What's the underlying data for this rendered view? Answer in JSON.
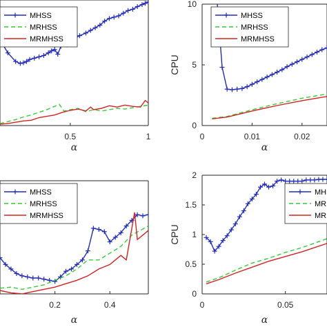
{
  "colors": {
    "mhss": "#1f2bbf",
    "mrhss": "#33cc33",
    "mrmhss": "#d42020",
    "axis": "#262626"
  },
  "chart_data": [
    {
      "type": "line",
      "xlabel": "α",
      "ylabel": "",
      "xlim": [
        0.05,
        1.0
      ],
      "ylim": [
        0.5,
        2.4
      ],
      "xticks": [
        0.5,
        1
      ],
      "xtick_labels": [
        "0.5",
        "1"
      ],
      "yticks": [],
      "ytick_labels": [],
      "legend": {
        "placement": "top-left",
        "entries": [
          "MHSS",
          "MRHSS",
          "MRMHSS"
        ]
      },
      "series": [
        {
          "name": "MHSS",
          "marker": "plus",
          "x": [
            0.05,
            0.1,
            0.15,
            0.18,
            0.2,
            0.22,
            0.24,
            0.27,
            0.3,
            0.33,
            0.36,
            0.38,
            0.4,
            0.42,
            0.44,
            0.46,
            0.48,
            0.5,
            0.53,
            0.56,
            0.6,
            0.63,
            0.66,
            0.69,
            0.72,
            0.75,
            0.78,
            0.81,
            0.84,
            0.87,
            0.9,
            0.93,
            0.96,
            0.98,
            1.0
          ],
          "y": [
            1.8,
            1.6,
            1.47,
            1.44,
            1.45,
            1.47,
            1.5,
            1.52,
            1.54,
            1.56,
            1.6,
            1.63,
            1.65,
            1.58,
            1.7,
            1.75,
            1.72,
            1.78,
            1.82,
            1.86,
            1.9,
            1.94,
            1.98,
            2.02,
            2.08,
            2.12,
            2.14,
            2.16,
            2.2,
            2.24,
            2.26,
            2.3,
            2.33,
            2.35,
            2.37
          ]
        },
        {
          "name": "MRHSS",
          "x": [
            0.05,
            0.1,
            0.15,
            0.2,
            0.25,
            0.3,
            0.35,
            0.4,
            0.43,
            0.46,
            0.5,
            0.55,
            0.6,
            0.65,
            0.7,
            0.75,
            0.8,
            0.85,
            0.9,
            0.95,
            1.0
          ],
          "y": [
            0.53,
            0.56,
            0.59,
            0.63,
            0.66,
            0.7,
            0.74,
            0.79,
            0.82,
            0.72,
            0.74,
            0.76,
            0.71,
            0.74,
            0.72,
            0.74,
            0.76,
            0.75,
            0.77,
            0.79,
            0.81
          ]
        },
        {
          "name": "MRMHSS",
          "x": [
            0.05,
            0.1,
            0.15,
            0.2,
            0.25,
            0.3,
            0.35,
            0.4,
            0.45,
            0.5,
            0.55,
            0.6,
            0.63,
            0.65,
            0.7,
            0.75,
            0.8,
            0.85,
            0.9,
            0.95,
            0.98,
            1.0
          ],
          "y": [
            0.52,
            0.53,
            0.55,
            0.57,
            0.58,
            0.62,
            0.64,
            0.66,
            0.7,
            0.73,
            0.75,
            0.72,
            0.78,
            0.74,
            0.76,
            0.8,
            0.78,
            0.81,
            0.79,
            0.78,
            0.88,
            0.84
          ]
        }
      ]
    },
    {
      "type": "line",
      "xlabel": "α",
      "ylabel": "CPU",
      "xlim": [
        0,
        0.025
      ],
      "ylim": [
        0,
        10
      ],
      "xticks": [
        0,
        0.01,
        0.02
      ],
      "xtick_labels": [
        "0",
        "0.01",
        "0.02"
      ],
      "yticks": [
        0,
        5,
        10
      ],
      "ytick_labels": [
        "0",
        "5",
        "10"
      ],
      "legend": {
        "placement": "top-left",
        "entries": [
          "MHSS",
          "MRHSS",
          "MRMHSS"
        ]
      },
      "series": [
        {
          "name": "MHSS",
          "marker": "plus",
          "x": [
            0.003,
            0.004,
            0.005,
            0.006,
            0.007,
            0.008,
            0.009,
            0.01,
            0.011,
            0.012,
            0.013,
            0.014,
            0.015,
            0.016,
            0.017,
            0.018,
            0.019,
            0.02,
            0.021,
            0.022,
            0.023,
            0.024,
            0.025
          ],
          "y": [
            10.2,
            4.8,
            3.0,
            2.95,
            3.0,
            3.05,
            3.2,
            3.4,
            3.6,
            3.8,
            4.0,
            4.2,
            4.4,
            4.6,
            4.85,
            5.05,
            5.25,
            5.45,
            5.65,
            5.85,
            6.05,
            6.25,
            6.4
          ]
        },
        {
          "name": "MRHSS",
          "x": [
            0.002,
            0.005,
            0.01,
            0.015,
            0.02,
            0.025
          ],
          "y": [
            0.6,
            0.75,
            1.3,
            1.8,
            2.25,
            2.6
          ]
        },
        {
          "name": "MRMHSS",
          "x": [
            0.002,
            0.005,
            0.01,
            0.015,
            0.02,
            0.025
          ],
          "y": [
            0.55,
            0.7,
            1.2,
            1.65,
            2.05,
            2.4
          ]
        }
      ]
    },
    {
      "type": "line",
      "xlabel": "α",
      "ylabel": "",
      "xlim": [
        0.0,
        0.54
      ],
      "ylim": [
        0,
        1.0
      ],
      "xticks": [
        0.2,
        0.4
      ],
      "xtick_labels": [
        "0.2",
        "0.4"
      ],
      "yticks": [],
      "ytick_labels": [],
      "legend": {
        "placement": "top-left",
        "entries": [
          "MHSS",
          "MRHSS",
          "MRMHSS"
        ]
      },
      "series": [
        {
          "name": "MHSS",
          "marker": "plus",
          "x": [
            0.0,
            0.02,
            0.04,
            0.06,
            0.08,
            0.1,
            0.12,
            0.14,
            0.16,
            0.18,
            0.2,
            0.22,
            0.24,
            0.26,
            0.28,
            0.3,
            0.32,
            0.34,
            0.36,
            0.38,
            0.4,
            0.42,
            0.44,
            0.46,
            0.48,
            0.5,
            0.52,
            0.54
          ],
          "y": [
            0.32,
            0.26,
            0.22,
            0.18,
            0.16,
            0.15,
            0.14,
            0.14,
            0.13,
            0.12,
            0.11,
            0.15,
            0.2,
            0.22,
            0.26,
            0.3,
            0.38,
            0.58,
            0.57,
            0.55,
            0.46,
            0.5,
            0.54,
            0.6,
            0.65,
            0.7,
            0.69,
            0.7
          ]
        },
        {
          "name": "MRHSS",
          "x": [
            0.0,
            0.04,
            0.08,
            0.12,
            0.16,
            0.2,
            0.24,
            0.28,
            0.32,
            0.36,
            0.4,
            0.44,
            0.48,
            0.54
          ],
          "y": [
            0.05,
            0.06,
            0.04,
            0.06,
            0.08,
            0.12,
            0.16,
            0.22,
            0.3,
            0.3,
            0.36,
            0.42,
            0.52,
            0.6
          ]
        },
        {
          "name": "MRMHSS",
          "x": [
            0.0,
            0.04,
            0.08,
            0.12,
            0.16,
            0.2,
            0.24,
            0.28,
            0.32,
            0.36,
            0.4,
            0.44,
            0.46,
            0.49,
            0.5,
            0.54
          ],
          "y": [
            0.03,
            0.01,
            0.0,
            0.02,
            0.04,
            0.06,
            0.09,
            0.12,
            0.16,
            0.22,
            0.26,
            0.34,
            0.3,
            0.72,
            0.48,
            0.56
          ]
        }
      ]
    },
    {
      "type": "line",
      "xlabel": "α",
      "ylabel": "CPU",
      "xlim": [
        0,
        0.075
      ],
      "ylim": [
        0,
        2
      ],
      "xticks": [
        0,
        0.05
      ],
      "xtick_labels": [
        "0",
        "0.05"
      ],
      "yticks": [
        0,
        0.5,
        1,
        1.5,
        2
      ],
      "ytick_labels": [
        "0",
        "0.5",
        "1",
        "1.5",
        "2"
      ],
      "legend": {
        "placement": "top-right",
        "entries": [
          "MHSS",
          "MRHSS",
          "MRMHSS"
        ],
        "visible_text": [
          "MH",
          "MR",
          "MR"
        ]
      },
      "series": [
        {
          "name": "MHSS",
          "marker": "plus",
          "x": [
            0.0025,
            0.005,
            0.0075,
            0.01,
            0.0125,
            0.015,
            0.0175,
            0.02,
            0.0225,
            0.025,
            0.0275,
            0.03,
            0.0325,
            0.035,
            0.0375,
            0.04,
            0.0425,
            0.045,
            0.0475,
            0.05,
            0.0525,
            0.055,
            0.0575,
            0.06,
            0.0625,
            0.065,
            0.0675,
            0.07,
            0.0725,
            0.075
          ],
          "y": [
            0.95,
            0.88,
            0.72,
            0.8,
            0.9,
            0.98,
            1.08,
            1.18,
            1.3,
            1.4,
            1.52,
            1.6,
            1.68,
            1.8,
            1.85,
            1.8,
            1.82,
            1.9,
            1.92,
            1.9,
            1.9,
            1.9,
            1.9,
            1.9,
            1.92,
            1.92,
            1.92,
            1.93,
            1.93,
            1.93
          ]
        },
        {
          "name": "MRHSS",
          "x": [
            0.0025,
            0.01,
            0.02,
            0.03,
            0.04,
            0.05,
            0.06,
            0.075
          ],
          "y": [
            0.2,
            0.27,
            0.4,
            0.52,
            0.6,
            0.7,
            0.78,
            0.93
          ]
        },
        {
          "name": "MRMHSS",
          "x": [
            0.0025,
            0.01,
            0.02,
            0.03,
            0.04,
            0.05,
            0.06,
            0.075
          ],
          "y": [
            0.17,
            0.24,
            0.35,
            0.45,
            0.55,
            0.63,
            0.71,
            0.85
          ]
        }
      ]
    }
  ]
}
